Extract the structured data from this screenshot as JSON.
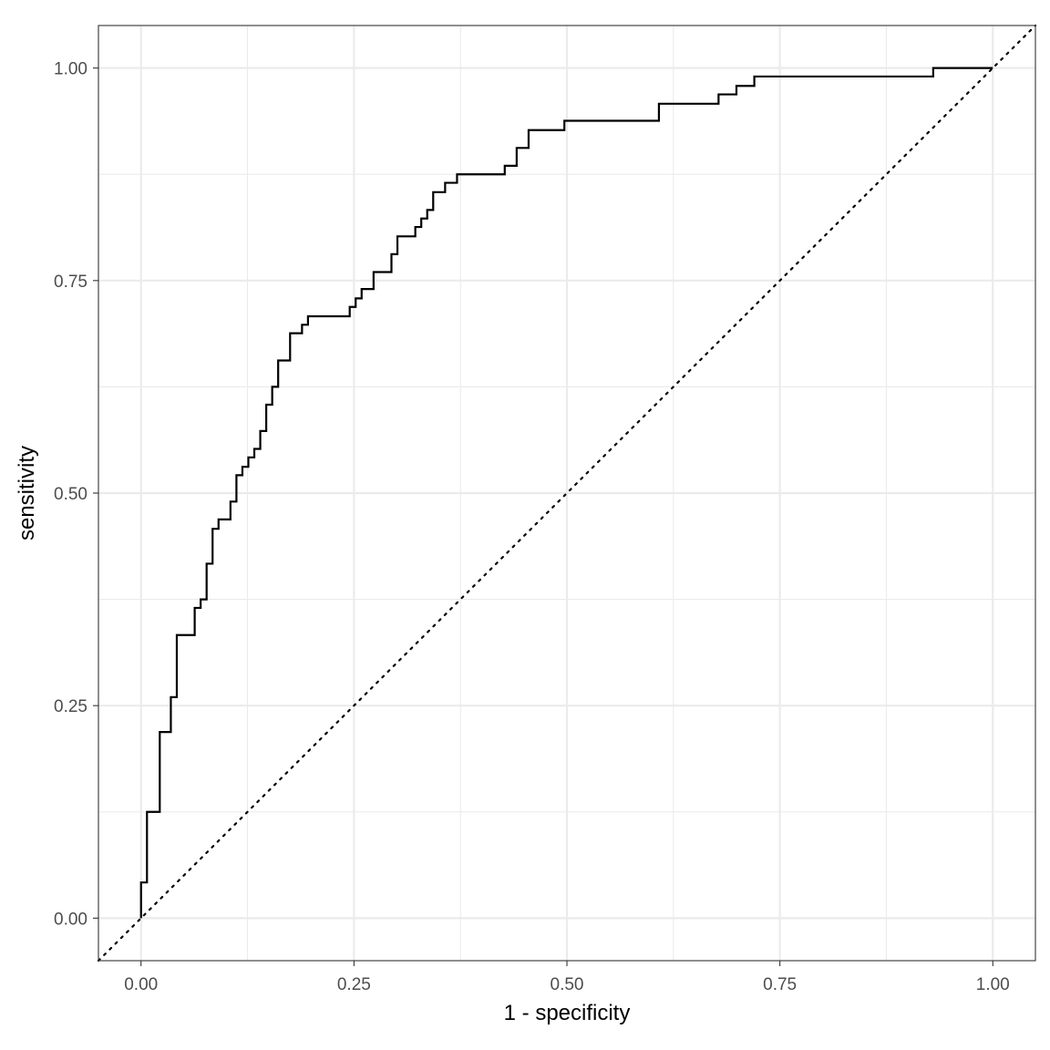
{
  "chart_data": {
    "type": "line",
    "title": "",
    "xlabel": "1 - specificity",
    "ylabel": "sensitivity",
    "xlim": [
      -0.05,
      1.05
    ],
    "ylim": [
      -0.05,
      1.05
    ],
    "xticks": [
      0,
      0.25,
      0.5,
      0.75,
      1
    ],
    "yticks": [
      0,
      0.25,
      0.5,
      0.75,
      1
    ],
    "xtick_labels": [
      "0.00",
      "0.25",
      "0.50",
      "0.75",
      "1.00"
    ],
    "ytick_labels": [
      "0.00",
      "0.25",
      "0.50",
      "0.75",
      "1.00"
    ],
    "minor_grid": [
      0.125,
      0.375,
      0.625,
      0.875
    ],
    "grid": true,
    "legend": "none",
    "colors": {
      "background": "#ffffff",
      "grid": "#ebebeb",
      "line": "#000000",
      "tick_text": "#4d4d4d"
    },
    "series": [
      {
        "style": "step",
        "x": [
          0.0,
          0.0,
          0.007,
          0.007,
          0.022,
          0.022,
          0.035,
          0.035,
          0.042,
          0.042,
          0.063,
          0.063,
          0.07,
          0.07,
          0.077,
          0.077,
          0.084,
          0.084,
          0.091,
          0.091,
          0.105,
          0.105,
          0.112,
          0.112,
          0.119,
          0.119,
          0.126,
          0.126,
          0.133,
          0.133,
          0.14,
          0.14,
          0.147,
          0.147,
          0.154,
          0.154,
          0.161,
          0.161,
          0.175,
          0.175,
          0.189,
          0.189,
          0.196,
          0.196,
          0.245,
          0.245,
          0.252,
          0.252,
          0.259,
          0.259,
          0.273,
          0.273,
          0.294,
          0.294,
          0.301,
          0.301,
          0.322,
          0.322,
          0.329,
          0.329,
          0.336,
          0.336,
          0.343,
          0.343,
          0.357,
          0.357,
          0.371,
          0.371,
          0.427,
          0.427,
          0.441,
          0.441,
          0.455,
          0.455,
          0.497,
          0.497,
          0.608,
          0.608,
          0.678,
          0.678,
          0.699,
          0.699,
          0.72,
          0.72,
          0.93,
          0.93,
          1.0
        ],
        "y": [
          0.0,
          0.042,
          0.042,
          0.125,
          0.125,
          0.219,
          0.219,
          0.26,
          0.26,
          0.333,
          0.333,
          0.365,
          0.365,
          0.375,
          0.375,
          0.417,
          0.417,
          0.458,
          0.458,
          0.469,
          0.469,
          0.49,
          0.49,
          0.521,
          0.521,
          0.531,
          0.531,
          0.542,
          0.542,
          0.552,
          0.552,
          0.573,
          0.573,
          0.604,
          0.604,
          0.625,
          0.625,
          0.656,
          0.656,
          0.688,
          0.688,
          0.698,
          0.698,
          0.708,
          0.708,
          0.719,
          0.719,
          0.729,
          0.729,
          0.74,
          0.74,
          0.76,
          0.76,
          0.781,
          0.781,
          0.802,
          0.802,
          0.813,
          0.813,
          0.823,
          0.823,
          0.833,
          0.833,
          0.854,
          0.854,
          0.865,
          0.865,
          0.875,
          0.875,
          0.885,
          0.885,
          0.906,
          0.906,
          0.927,
          0.927,
          0.938,
          0.938,
          0.958,
          0.958,
          0.969,
          0.969,
          0.979,
          0.979,
          0.99,
          0.99,
          1.0,
          1.0
        ]
      },
      {
        "style": "dotted",
        "x": [
          -0.05,
          1.05
        ],
        "y": [
          -0.05,
          1.05
        ]
      }
    ]
  }
}
